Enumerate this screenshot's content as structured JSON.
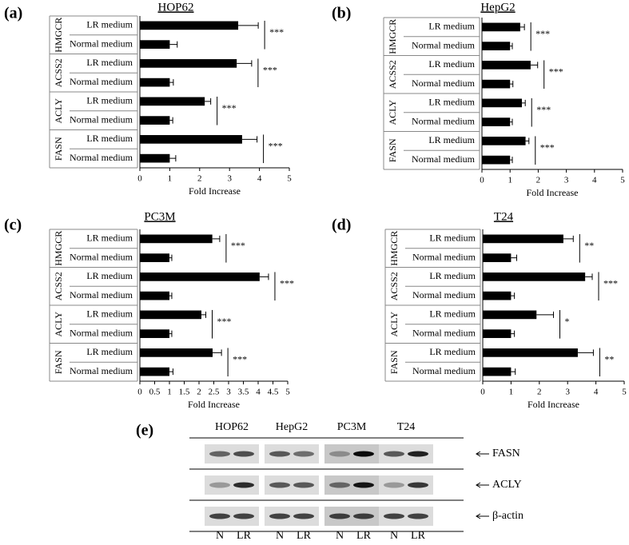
{
  "chart_data": [
    {
      "type": "bar",
      "orientation": "horizontal",
      "panel": "(a)",
      "title": "HOP62",
      "x_label": "Fold Increase",
      "groups": [
        "HMGCR",
        "ACSS2",
        "ACLY",
        "FASN"
      ],
      "categories": [
        "LR medium",
        "Normal medium",
        "LR medium",
        "Normal medium",
        "LR medium",
        "Normal medium",
        "LR medium",
        "Normal medium"
      ],
      "values": [
        3.29,
        1.0,
        3.24,
        1.0,
        2.17,
        1.0,
        3.42,
        1.0
      ],
      "errors": [
        0.67,
        0.25,
        0.5,
        0.12,
        0.2,
        0.1,
        0.5,
        0.2
      ],
      "significance": [
        "***",
        "***",
        "***",
        "***"
      ],
      "color": "#000000",
      "xlim": [
        0,
        5
      ],
      "xticks": [
        0,
        1,
        2,
        3,
        4,
        5
      ]
    },
    {
      "type": "bar",
      "orientation": "horizontal",
      "panel": "(b)",
      "title": "HepG2",
      "x_label": "Fold Increase",
      "groups": [
        "HMGCR",
        "ACSS2",
        "ACLY",
        "FASN"
      ],
      "categories": [
        "LR medium",
        "Normal medium",
        "LR medium",
        "Normal medium",
        "LR medium",
        "Normal medium",
        "LR medium",
        "Normal medium"
      ],
      "values": [
        1.36,
        1.0,
        1.73,
        1.0,
        1.42,
        1.0,
        1.55,
        1.0
      ],
      "errors": [
        0.15,
        0.08,
        0.25,
        0.1,
        0.12,
        0.08,
        0.12,
        0.08
      ],
      "significance": [
        "***",
        "***",
        "***",
        "***"
      ],
      "color": "#000000",
      "xlim": [
        0,
        5
      ],
      "xticks": [
        0,
        1,
        2,
        3,
        4,
        5
      ]
    },
    {
      "type": "bar",
      "orientation": "horizontal",
      "panel": "(c)",
      "title": "PC3M",
      "x_label": "Fold Increase",
      "groups": [
        "HMGCR",
        "ACSS2",
        "ACLY",
        "FASN"
      ],
      "categories": [
        "LR medium",
        "Normal medium",
        "LR medium",
        "Normal medium",
        "LR medium",
        "Normal medium",
        "LR medium",
        "Normal medium"
      ],
      "values": [
        2.45,
        1.0,
        4.05,
        1.0,
        2.08,
        1.0,
        2.46,
        1.0
      ],
      "errors": [
        0.25,
        0.08,
        0.3,
        0.08,
        0.15,
        0.08,
        0.3,
        0.12
      ],
      "significance": [
        "***",
        "***",
        "***",
        "***"
      ],
      "color": "#000000",
      "xlim": [
        0,
        5
      ],
      "xticks": [
        0,
        0.5,
        1,
        1.5,
        2,
        2.5,
        3,
        3.5,
        4,
        4.5,
        5
      ]
    },
    {
      "type": "bar",
      "orientation": "horizontal",
      "panel": "(d)",
      "title": "T24",
      "x_label": "Fold Increase",
      "groups": [
        "HMGCR",
        "ACSS2",
        "ACLY",
        "FASN"
      ],
      "categories": [
        "LR medium",
        "Normal medium",
        "LR medium",
        "Normal medium",
        "LR medium",
        "Normal medium",
        "LR medium",
        "Normal medium"
      ],
      "values": [
        2.85,
        1.0,
        3.62,
        1.0,
        1.9,
        1.0,
        3.36,
        1.0
      ],
      "errors": [
        0.35,
        0.2,
        0.25,
        0.12,
        0.6,
        0.12,
        0.55,
        0.15
      ],
      "significance": [
        "**",
        "***",
        "*",
        "**"
      ],
      "color": "#000000",
      "xlim": [
        0,
        5
      ],
      "xticks": [
        0,
        1,
        2,
        3,
        4,
        5
      ]
    }
  ],
  "blot": {
    "panel": "(e)",
    "cell_lines": [
      "HOP62",
      "HepG2",
      "PC3M",
      "T24"
    ],
    "proteins": [
      "FASN",
      "ACLY",
      "β-actin"
    ],
    "lanes": [
      "N",
      "LR"
    ]
  }
}
